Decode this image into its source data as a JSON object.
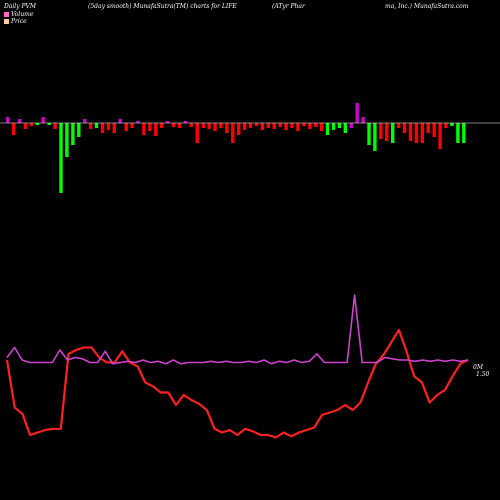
{
  "header": {
    "part1": "Daily PVM",
    "part2": "(5day smooth) MunafaSutra(TM) charts for LIFE",
    "part3": "(ATyr Phar",
    "part4": "ma, Inc.) MunafaSutra.com"
  },
  "legend": [
    {
      "label": "Volume",
      "color": "#ff66cc"
    },
    {
      "label": "Price",
      "color": "#ffcc99"
    }
  ],
  "colors": {
    "bar_up": "#00ff00",
    "bar_down": "#ff0000",
    "bar_highlight": "#cc00cc",
    "volume_line": "#cc44cc",
    "price_line": "#ff2222",
    "baseline": "#ffffff"
  },
  "chart_data": [
    {
      "type": "bar",
      "title": "",
      "series": [
        {
          "values": [
            {
              "v": 6,
              "c": "magenta"
            },
            {
              "v": -12,
              "c": "red"
            },
            {
              "v": 4,
              "c": "magenta"
            },
            {
              "v": -6,
              "c": "red"
            },
            {
              "v": -3,
              "c": "red"
            },
            {
              "v": -2,
              "c": "green"
            },
            {
              "v": 6,
              "c": "magenta"
            },
            {
              "v": -2,
              "c": "green"
            },
            {
              "v": -6,
              "c": "red"
            },
            {
              "v": -70,
              "c": "green"
            },
            {
              "v": -34,
              "c": "green"
            },
            {
              "v": -22,
              "c": "green"
            },
            {
              "v": -14,
              "c": "green"
            },
            {
              "v": 4,
              "c": "magenta"
            },
            {
              "v": -6,
              "c": "red"
            },
            {
              "v": -5,
              "c": "green"
            },
            {
              "v": -10,
              "c": "red"
            },
            {
              "v": -7,
              "c": "red"
            },
            {
              "v": -10,
              "c": "red"
            },
            {
              "v": 4,
              "c": "magenta"
            },
            {
              "v": -8,
              "c": "red"
            },
            {
              "v": -5,
              "c": "red"
            },
            {
              "v": 2,
              "c": "magenta"
            },
            {
              "v": -12,
              "c": "red"
            },
            {
              "v": -8,
              "c": "red"
            },
            {
              "v": -13,
              "c": "red"
            },
            {
              "v": -5,
              "c": "red"
            },
            {
              "v": 2,
              "c": "magenta"
            },
            {
              "v": -4,
              "c": "red"
            },
            {
              "v": -5,
              "c": "red"
            },
            {
              "v": 2,
              "c": "magenta"
            },
            {
              "v": -4,
              "c": "red"
            },
            {
              "v": -20,
              "c": "red"
            },
            {
              "v": -5,
              "c": "red"
            },
            {
              "v": -6,
              "c": "red"
            },
            {
              "v": -8,
              "c": "red"
            },
            {
              "v": -5,
              "c": "red"
            },
            {
              "v": -10,
              "c": "red"
            },
            {
              "v": -20,
              "c": "red"
            },
            {
              "v": -12,
              "c": "red"
            },
            {
              "v": -7,
              "c": "red"
            },
            {
              "v": -5,
              "c": "red"
            },
            {
              "v": -3,
              "c": "red"
            },
            {
              "v": -7,
              "c": "red"
            },
            {
              "v": -5,
              "c": "red"
            },
            {
              "v": -6,
              "c": "red"
            },
            {
              "v": -4,
              "c": "red"
            },
            {
              "v": -7,
              "c": "red"
            },
            {
              "v": -5,
              "c": "red"
            },
            {
              "v": -8,
              "c": "red"
            },
            {
              "v": -3,
              "c": "red"
            },
            {
              "v": -6,
              "c": "red"
            },
            {
              "v": -4,
              "c": "red"
            },
            {
              "v": -8,
              "c": "red"
            },
            {
              "v": -12,
              "c": "green"
            },
            {
              "v": -7,
              "c": "green"
            },
            {
              "v": -5,
              "c": "green"
            },
            {
              "v": -10,
              "c": "green"
            },
            {
              "v": -5,
              "c": "magenta"
            },
            {
              "v": 20,
              "c": "magenta"
            },
            {
              "v": 6,
              "c": "magenta"
            },
            {
              "v": -22,
              "c": "green"
            },
            {
              "v": -28,
              "c": "green"
            },
            {
              "v": -16,
              "c": "red"
            },
            {
              "v": -18,
              "c": "red"
            },
            {
              "v": -20,
              "c": "green"
            },
            {
              "v": -5,
              "c": "red"
            },
            {
              "v": -10,
              "c": "red"
            },
            {
              "v": -18,
              "c": "red"
            },
            {
              "v": -20,
              "c": "red"
            },
            {
              "v": -20,
              "c": "red"
            },
            {
              "v": -10,
              "c": "red"
            },
            {
              "v": -14,
              "c": "red"
            },
            {
              "v": -26,
              "c": "red"
            },
            {
              "v": -5,
              "c": "red"
            },
            {
              "v": -3,
              "c": "green"
            },
            {
              "v": -20,
              "c": "green"
            },
            {
              "v": -20,
              "c": "green"
            }
          ]
        }
      ]
    },
    {
      "type": "line",
      "title": "",
      "annotation_text": "0M",
      "annotation_value": "1.50",
      "series": [
        {
          "name": "Volume",
          "values": [
            50,
            58,
            48,
            46,
            46,
            46,
            46,
            56,
            48,
            50,
            49,
            46,
            46,
            55,
            45,
            46,
            47,
            46,
            48,
            46,
            47,
            45,
            48,
            45,
            46,
            46,
            46,
            47,
            46,
            47,
            46,
            46,
            47,
            46,
            48,
            45,
            47,
            46,
            48,
            46,
            47,
            53,
            46,
            46,
            46,
            46,
            100,
            46,
            46,
            46,
            50,
            49,
            48,
            48,
            47,
            48,
            47,
            48,
            47,
            48,
            47,
            48
          ]
        },
        {
          "name": "Price",
          "values": [
            48,
            10,
            5,
            -12,
            -10,
            -8,
            -7,
            -7,
            53,
            56,
            58,
            58,
            50,
            46,
            46,
            55,
            46,
            43,
            30,
            27,
            22,
            22,
            12,
            20,
            16,
            13,
            8,
            -7,
            -10,
            -8,
            -12,
            -7,
            -9,
            -12,
            -12,
            -14,
            -10,
            -13,
            -10,
            -8,
            -6,
            4,
            6,
            8,
            12,
            8,
            14,
            30,
            45,
            52,
            62,
            72,
            55,
            35,
            30,
            14,
            20,
            24,
            35,
            45,
            48
          ]
        }
      ]
    }
  ]
}
